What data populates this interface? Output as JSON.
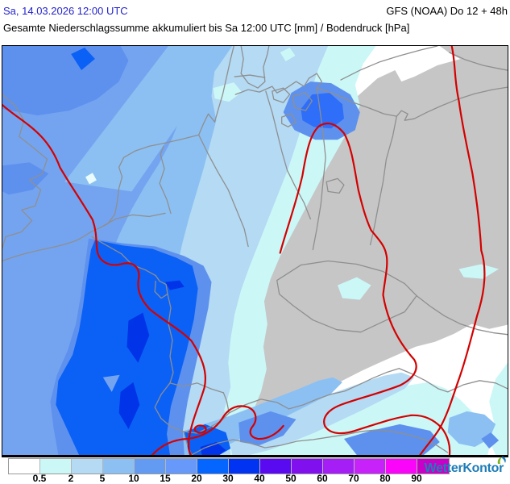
{
  "header": {
    "datetime": "Sa, 14.03.2026 12:00 UTC",
    "model": "GFS (NOAA) Do 12 + 48h",
    "title": "Gesamte Niederschlagssumme akkumuliert bis Sa 12:00 UTC [mm] / Bodendruck [hPa]"
  },
  "map": {
    "kind": "precipitation-accumulation-with-surface-pressure",
    "region": "Central Europe",
    "colors": {
      "sea": "#ffffff",
      "dryland": "#c6c6c6",
      "lvl05": "#ccf7f7",
      "lvl2": "#b4daf4",
      "lvl5": "#8cc0f2",
      "lvl10": "#74a4f0",
      "lvl15": "#5e91ee",
      "lvl20": "#0b61f5",
      "lvl30": "#0134e8",
      "border": "#8f8f8f",
      "isobar": "#d40000",
      "frame": "#000000"
    }
  },
  "legend": {
    "unit": "mm",
    "unit_values": [
      "0.5",
      "2",
      "5",
      "10",
      "15",
      "20",
      "30",
      "40",
      "50",
      "60",
      "70",
      "80",
      "90"
    ],
    "colors": [
      "#ffffff",
      "#ccf7f7",
      "#b4daf4",
      "#8cc0f2",
      "#639bf2",
      "#6699fa",
      "#0566ff",
      "#0133f2",
      "#5a0af0",
      "#8011ee",
      "#a51ef5",
      "#c822fa",
      "#fa05fa",
      "#c800c8"
    ]
  },
  "branding": {
    "logo_text": "WetterKontor",
    "logo_color": "#1e7db8",
    "logo_accent": "#7ab51d"
  }
}
